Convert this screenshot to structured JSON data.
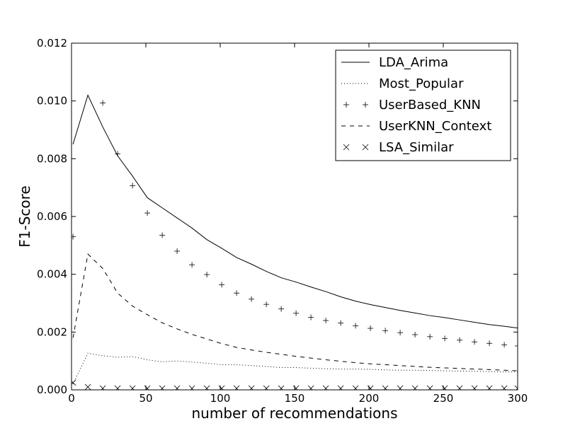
{
  "chart_data": {
    "type": "line",
    "xlabel": "number of recommendations",
    "ylabel": "F1-Score",
    "xlim": [
      0,
      300
    ],
    "ylim": [
      0,
      0.012
    ],
    "xticks": [
      0,
      50,
      100,
      150,
      200,
      250,
      300
    ],
    "yticks": [
      0.0,
      0.002,
      0.004,
      0.006,
      0.008,
      0.01,
      0.012
    ],
    "xtick_labels": [
      "0",
      "50",
      "100",
      "150",
      "200",
      "250",
      "300"
    ],
    "ytick_labels": [
      "0.000",
      "0.002",
      "0.004",
      "0.006",
      "0.008",
      "0.010",
      "0.012"
    ],
    "grid": false,
    "legend_position": "top-right",
    "series": [
      {
        "name": "LDA_Arima",
        "style": "solid",
        "x": [
          1,
          11,
          21,
          31,
          41,
          51,
          61,
          71,
          81,
          91,
          101,
          111,
          121,
          131,
          141,
          151,
          161,
          171,
          181,
          191,
          201,
          211,
          221,
          231,
          241,
          251,
          261,
          271,
          281,
          291,
          300
        ],
        "y": [
          0.0085,
          0.0102,
          0.0091,
          0.0081,
          0.0074,
          0.00665,
          0.0063,
          0.00595,
          0.0056,
          0.0052,
          0.0049,
          0.00458,
          0.00435,
          0.0041,
          0.00388,
          0.00373,
          0.00356,
          0.0034,
          0.00322,
          0.00307,
          0.00295,
          0.00285,
          0.00275,
          0.00266,
          0.00257,
          0.0025,
          0.00242,
          0.00234,
          0.00226,
          0.0022,
          0.00214
        ]
      },
      {
        "name": "Most_Popular",
        "style": "dotted",
        "x": [
          1,
          11,
          21,
          31,
          41,
          51,
          61,
          71,
          81,
          91,
          101,
          111,
          121,
          131,
          141,
          151,
          161,
          171,
          181,
          191,
          201,
          211,
          221,
          231,
          241,
          251,
          261,
          271,
          281,
          291,
          300
        ],
        "y": [
          0.0002,
          0.00127,
          0.00118,
          0.00113,
          0.00115,
          0.00104,
          0.00097,
          0.001,
          0.00096,
          0.00092,
          0.00087,
          0.00087,
          0.00084,
          0.00081,
          0.00077,
          0.00077,
          0.00075,
          0.00073,
          0.00072,
          0.00072,
          0.00071,
          0.00069,
          0.00068,
          0.00068,
          0.00067,
          0.00066,
          0.00065,
          0.00064,
          0.00063,
          0.00062,
          0.00062
        ]
      },
      {
        "name": "UserBased_KNN",
        "style": "plus",
        "x": [
          1,
          21,
          31,
          41,
          51,
          61,
          71,
          81,
          91,
          101,
          111,
          121,
          131,
          141,
          151,
          161,
          171,
          181,
          191,
          201,
          211,
          221,
          231,
          241,
          251,
          261,
          271,
          281,
          291,
          300
        ],
        "y": [
          0.0053,
          0.00993,
          0.00817,
          0.00707,
          0.00612,
          0.00535,
          0.0048,
          0.00433,
          0.00399,
          0.00364,
          0.00335,
          0.00314,
          0.00296,
          0.0028,
          0.00265,
          0.00251,
          0.0024,
          0.00231,
          0.00222,
          0.00213,
          0.00205,
          0.00198,
          0.00191,
          0.00184,
          0.00178,
          0.00172,
          0.00166,
          0.00161,
          0.00156,
          0.00152
        ]
      },
      {
        "name": "UserKNN_Context",
        "style": "dashed",
        "x": [
          1,
          11,
          21,
          31,
          41,
          51,
          61,
          71,
          81,
          91,
          101,
          111,
          121,
          131,
          141,
          151,
          161,
          171,
          181,
          191,
          201,
          211,
          221,
          231,
          241,
          251,
          261,
          271,
          281,
          291,
          300
        ],
        "y": [
          0.0018,
          0.0047,
          0.0042,
          0.00335,
          0.0029,
          0.0026,
          0.00232,
          0.00211,
          0.00192,
          0.00176,
          0.0016,
          0.00147,
          0.00138,
          0.0013,
          0.00123,
          0.00116,
          0.0011,
          0.00104,
          0.00099,
          0.00094,
          0.0009,
          0.00087,
          0.00084,
          0.00081,
          0.00078,
          0.00076,
          0.00074,
          0.00072,
          0.0007,
          0.00068,
          0.00066
        ]
      },
      {
        "name": "LSA_Similar",
        "style": "cross",
        "x": [
          1,
          11,
          21,
          31,
          41,
          51,
          61,
          71,
          81,
          91,
          101,
          111,
          121,
          131,
          141,
          151,
          161,
          171,
          181,
          191,
          201,
          211,
          221,
          231,
          241,
          251,
          261,
          271,
          281,
          291,
          300
        ],
        "y": [
          0.00025,
          0.0001,
          5e-05,
          5e-05,
          5e-05,
          5e-05,
          5e-05,
          5e-05,
          5e-05,
          5e-05,
          5e-05,
          5e-05,
          5e-05,
          5e-05,
          5e-05,
          5e-05,
          5e-05,
          5e-05,
          5e-05,
          5e-05,
          5e-05,
          5e-05,
          5e-05,
          5e-05,
          5e-05,
          5e-05,
          5e-05,
          5e-05,
          5e-05,
          5e-05,
          5e-05
        ]
      }
    ]
  }
}
